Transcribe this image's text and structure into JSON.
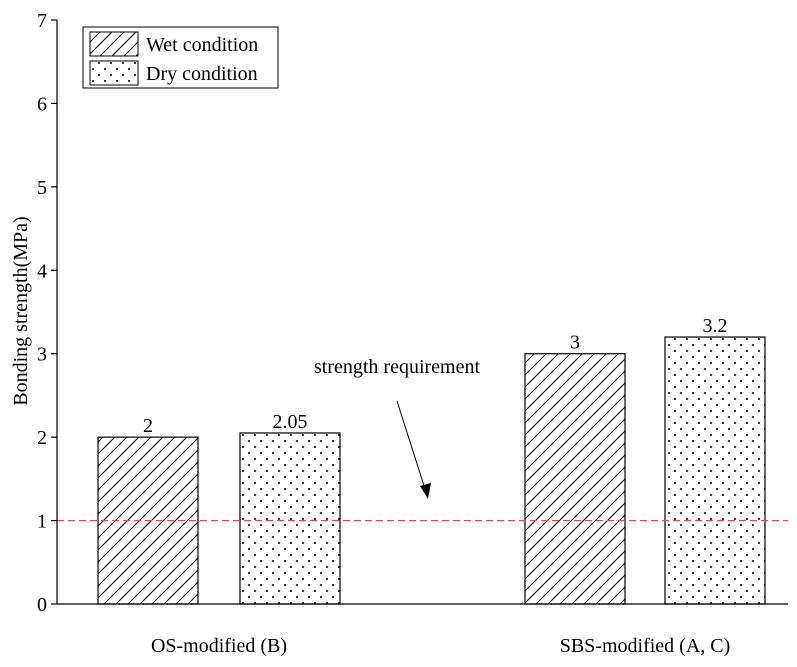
{
  "chart_data": {
    "type": "bar",
    "title": "",
    "xlabel": "",
    "ylabel": "Bonding strength(MPa)",
    "ylim": [
      0,
      7
    ],
    "yticks": [
      0,
      1,
      2,
      3,
      4,
      5,
      6,
      7
    ],
    "categories": [
      "OS-modified (B)",
      "SBS-modified (A, C)"
    ],
    "series": [
      {
        "name": "Wet condition",
        "pattern": "diagonal-hatch",
        "values": [
          2,
          3
        ],
        "labels": [
          "2",
          "3"
        ]
      },
      {
        "name": "Dry condition",
        "pattern": "dots",
        "values": [
          2.05,
          3.2
        ],
        "labels": [
          "2.05",
          "3.2"
        ]
      }
    ],
    "reference_line": {
      "value": 1,
      "style": "dashed",
      "color": "#e8454f"
    },
    "annotation": {
      "text": "strength requirement",
      "arrow_to": "reference-line"
    },
    "legend_position": "top-left",
    "grid": false
  },
  "colors": {
    "axis": "#000000",
    "bar_fill": "#ffffff",
    "bar_edge": "#000000",
    "reference_line": "#e8454f"
  }
}
